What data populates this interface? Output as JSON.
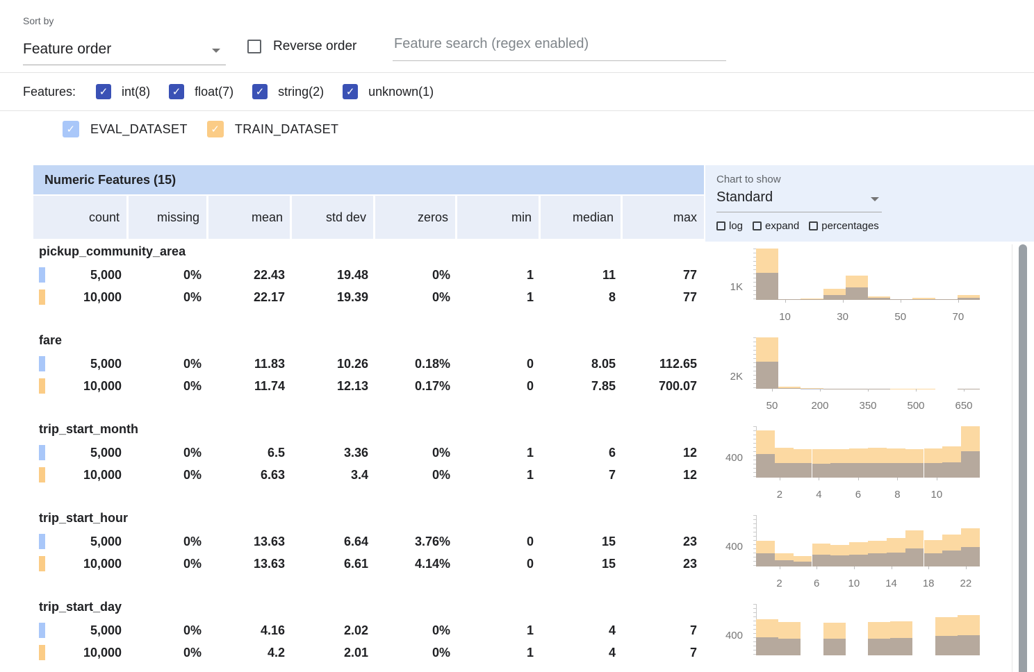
{
  "colors": {
    "filter_checkbox": "#3a51b5",
    "header_blue": "#c3d7f5",
    "panel_blue": "#e9f0fb",
    "column_header_blue": "#e9eef8",
    "train_bar": "#fcd9a2",
    "eval_overlay": "rgba(97,110,150,0.45)"
  },
  "toolbar": {
    "sort_by_label": "Sort by",
    "sort_value": "Feature order",
    "reverse_order_label": "Reverse order",
    "search_placeholder": "Feature search (regex enabled)"
  },
  "feature_filters": {
    "label": "Features:",
    "items": [
      {
        "label": "int(8)",
        "checked": true
      },
      {
        "label": "float(7)",
        "checked": true
      },
      {
        "label": "string(2)",
        "checked": true
      },
      {
        "label": "unknown(1)",
        "checked": true
      }
    ]
  },
  "datasets": [
    {
      "label": "EVAL_DATASET",
      "color": "#a9c7f9",
      "checked": true
    },
    {
      "label": "TRAIN_DATASET",
      "color": "#fbcc86",
      "checked": true
    }
  ],
  "table": {
    "title": "Numeric Features (15)",
    "columns": [
      "count",
      "missing",
      "mean",
      "std dev",
      "zeros",
      "min",
      "median",
      "max"
    ]
  },
  "chart_controls": {
    "label": "Chart to show",
    "selected": "Standard",
    "toggles": [
      {
        "label": "log",
        "checked": false
      },
      {
        "label": "expand",
        "checked": false
      },
      {
        "label": "percentages",
        "checked": false
      }
    ]
  },
  "features": [
    {
      "name": "pickup_community_area",
      "eval": [
        "5,000",
        "0%",
        "22.43",
        "19.48",
        "0%",
        "1",
        "11",
        "77"
      ],
      "train": [
        "10,000",
        "0%",
        "22.17",
        "19.39",
        "0%",
        "1",
        "8",
        "77"
      ]
    },
    {
      "name": "fare",
      "eval": [
        "5,000",
        "0%",
        "11.83",
        "10.26",
        "0.18%",
        "0",
        "8.05",
        "112.65"
      ],
      "train": [
        "10,000",
        "0%",
        "11.74",
        "12.13",
        "0.17%",
        "0",
        "7.85",
        "700.07"
      ]
    },
    {
      "name": "trip_start_month",
      "eval": [
        "5,000",
        "0%",
        "6.5",
        "3.36",
        "0%",
        "1",
        "6",
        "12"
      ],
      "train": [
        "10,000",
        "0%",
        "6.63",
        "3.4",
        "0%",
        "1",
        "7",
        "12"
      ]
    },
    {
      "name": "trip_start_hour",
      "eval": [
        "5,000",
        "0%",
        "13.63",
        "6.64",
        "3.76%",
        "0",
        "15",
        "23"
      ],
      "train": [
        "10,000",
        "0%",
        "13.63",
        "6.61",
        "4.14%",
        "0",
        "15",
        "23"
      ]
    },
    {
      "name": "trip_start_day",
      "eval": [
        "5,000",
        "0%",
        "4.16",
        "2.02",
        "0%",
        "1",
        "4",
        "7"
      ],
      "train": [
        "10,000",
        "0%",
        "4.2",
        "2.01",
        "0%",
        "1",
        "4",
        "7"
      ]
    }
  ],
  "chart_data": [
    {
      "type": "bar",
      "feature": "pickup_community_area",
      "ylabel": "1K",
      "ymax": 4000,
      "xmin": 0,
      "xmax": 77.5,
      "xticks": [
        10,
        30,
        50,
        70
      ],
      "series": [
        {
          "name": "TRAIN_DATASET",
          "values": [
            4300,
            60,
            90,
            840,
            1900,
            280,
            80,
            140,
            60,
            380
          ]
        },
        {
          "name": "EVAL_DATASET",
          "values": [
            2100,
            30,
            45,
            400,
            950,
            140,
            40,
            70,
            30,
            190
          ]
        }
      ]
    },
    {
      "type": "bar",
      "feature": "fare",
      "ylabel": "2K",
      "ymax": 8700,
      "xmin": 0,
      "xmax": 700,
      "xticks": [
        50,
        200,
        350,
        500,
        650
      ],
      "series": [
        {
          "name": "TRAIN_DATASET",
          "values": [
            9600,
            340,
            110,
            60,
            40,
            25,
            18,
            12,
            8,
            20
          ]
        },
        {
          "name": "EVAL_DATASET",
          "values": [
            4600,
            160,
            55,
            30,
            20,
            12,
            9,
            6,
            4,
            10
          ]
        }
      ]
    },
    {
      "type": "bar",
      "feature": "trip_start_month",
      "ylabel": "400",
      "ymax": 1070,
      "xmin": 0.8,
      "xmax": 12.2,
      "xticks": [
        2,
        4,
        6,
        8,
        10
      ],
      "series": [
        {
          "name": "TRAIN_DATASET",
          "values": [
            980,
            620,
            600,
            590,
            600,
            610,
            620,
            610,
            595,
            605,
            650,
            1100
          ]
        },
        {
          "name": "EVAL_DATASET",
          "values": [
            490,
            310,
            300,
            295,
            300,
            305,
            310,
            305,
            298,
            303,
            325,
            550
          ]
        }
      ]
    },
    {
      "type": "bar",
      "feature": "trip_start_hour",
      "ylabel": "400",
      "ymax": 1070,
      "xmin": -0.5,
      "xmax": 23.5,
      "xticks": [
        2,
        6,
        10,
        14,
        18,
        22
      ],
      "series": [
        {
          "name": "TRAIN_DATASET",
          "values": [
            540,
            270,
            215,
            480,
            450,
            500,
            535,
            590,
            750,
            555,
            665,
            800
          ]
        },
        {
          "name": "EVAL_DATASET",
          "values": [
            270,
            135,
            108,
            240,
            225,
            250,
            268,
            295,
            375,
            278,
            333,
            400
          ]
        }
      ]
    },
    {
      "type": "bar",
      "feature": "trip_start_day",
      "ylabel": "400",
      "ymax": 1070,
      "xmin": 1,
      "xmax": 7,
      "xticks": [],
      "series": [
        {
          "name": "TRAIN_DATASET",
          "values": [
            750,
            700,
            0,
            680,
            0,
            690,
            710,
            0,
            800,
            835
          ]
        },
        {
          "name": "EVAL_DATASET",
          "values": [
            375,
            350,
            0,
            340,
            0,
            345,
            355,
            0,
            400,
            418
          ]
        }
      ]
    }
  ]
}
